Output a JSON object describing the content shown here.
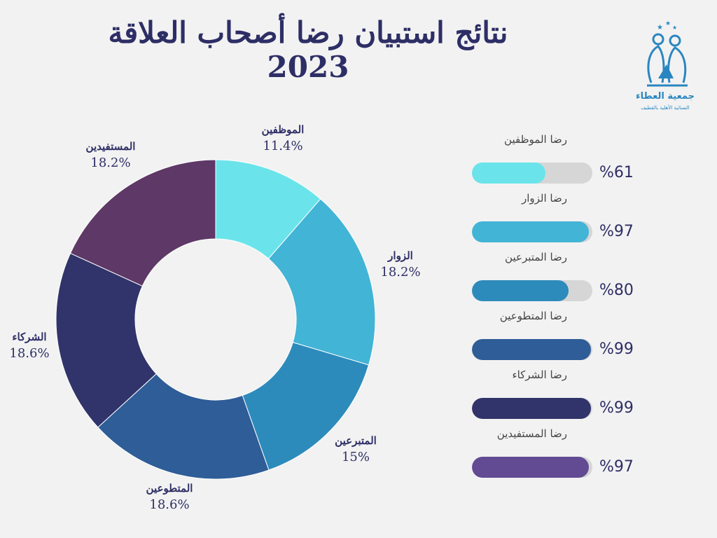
{
  "title": "نتائج استبيان رضا أصحاب العلاقة 2023",
  "logo": {
    "name": "جمعية العطاء",
    "subtitle": "النسائية الأهلية بالقطيف"
  },
  "chart_data": [
    {
      "type": "pie",
      "slices": [
        {
          "label": "الموظفين",
          "value": 11.4,
          "pct_text": "11.4%",
          "color": "#6ae4ea"
        },
        {
          "label": "الزوار",
          "value": 18.2,
          "pct_text": "18.2%",
          "color": "#42b4d6"
        },
        {
          "label": "المتبرعين",
          "value": 15,
          "pct_text": "15%",
          "color": "#2d8bbb"
        },
        {
          "label": "المتطوعين",
          "value": 18.6,
          "pct_text": "18.6%",
          "color": "#2e5d97"
        },
        {
          "label": "الشركاء",
          "value": 18.6,
          "pct_text": "18.6%",
          "color": "#30346a"
        },
        {
          "label": "المستفيدين",
          "value": 18.2,
          "pct_text": "18.2%",
          "color": "#5e3866"
        }
      ]
    },
    {
      "type": "bar",
      "orientation": "horizontal",
      "xlim": [
        0,
        100
      ],
      "rows": [
        {
          "label": "رضا الموظفين",
          "value": 61,
          "pct_text": "%61",
          "color": "#6ae4ea"
        },
        {
          "label": "رضا الزوار",
          "value": 97,
          "pct_text": "%97",
          "color": "#42b4d6"
        },
        {
          "label": "رضا المتبرعين",
          "value": 80,
          "pct_text": "%80",
          "color": "#2d8bbb"
        },
        {
          "label": "رضا المتطوعين",
          "value": 99,
          "pct_text": "%99",
          "color": "#2e5d97"
        },
        {
          "label": "رضا الشركاء",
          "value": 99,
          "pct_text": "%99",
          "color": "#30346a"
        },
        {
          "label": "رضا المستفيدين",
          "value": 97,
          "pct_text": "%97",
          "color": "#624b93"
        }
      ]
    }
  ]
}
